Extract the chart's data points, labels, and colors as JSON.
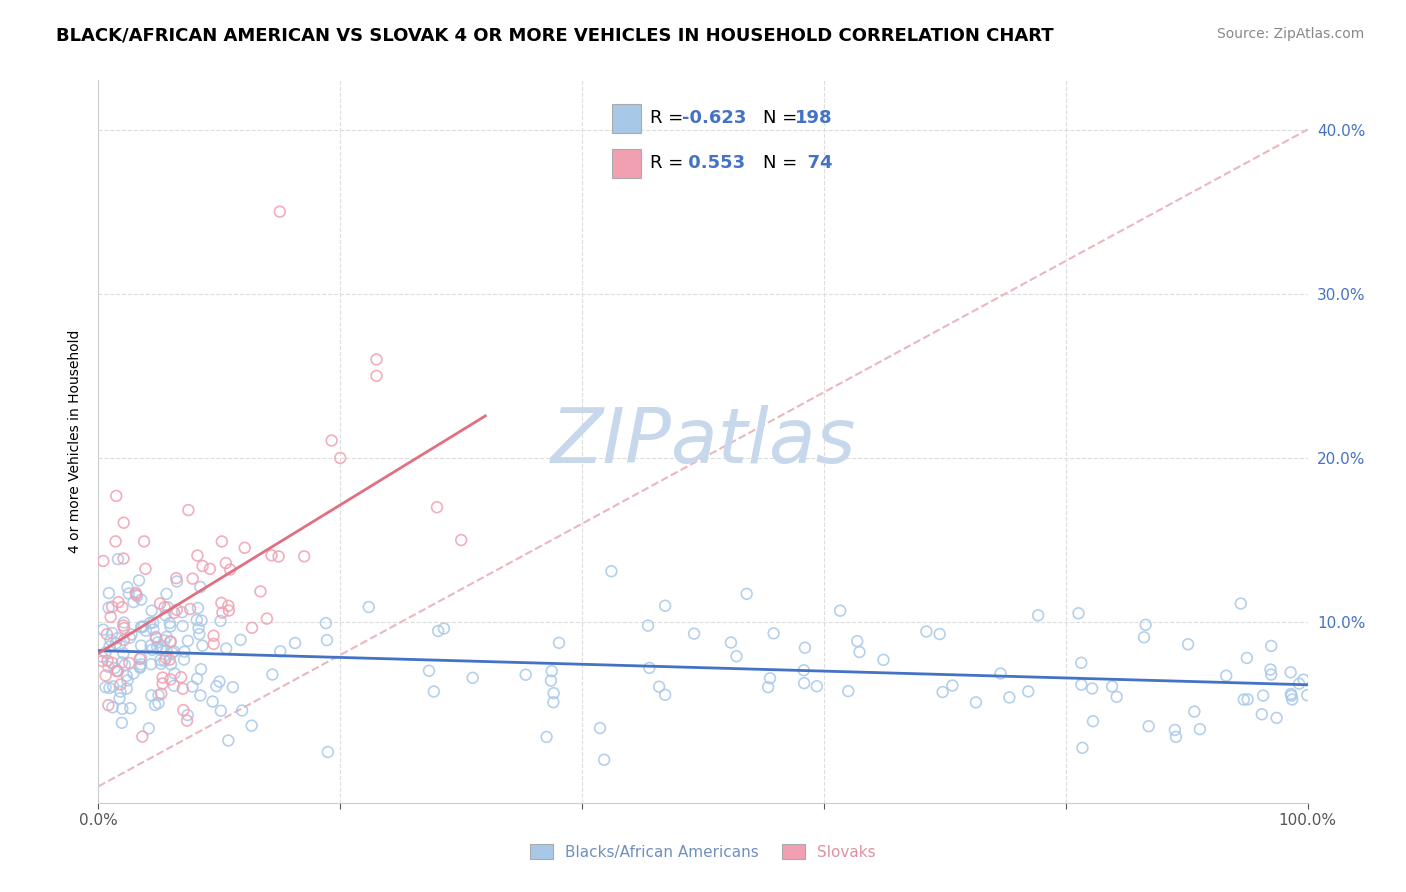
{
  "title": "BLACK/AFRICAN AMERICAN VS SLOVAK 4 OR MORE VEHICLES IN HOUSEHOLD CORRELATION CHART",
  "source": "Source: ZipAtlas.com",
  "ylabel": "4 or more Vehicles in Household",
  "xlabel_blue": "Blacks/African Americans",
  "xlabel_pink": "Slovaks",
  "xlim": [
    0,
    1.0
  ],
  "ylim": [
    -0.01,
    0.43
  ],
  "xticks": [
    0.0,
    0.2,
    0.4,
    0.6,
    0.8,
    1.0
  ],
  "xtick_labels": [
    "0.0%",
    "",
    "",
    "",
    "",
    "100.0%"
  ],
  "yticks": [
    0.0,
    0.1,
    0.2,
    0.3,
    0.4
  ],
  "ytick_labels_right": [
    "",
    "10.0%",
    "20.0%",
    "30.0%",
    "40.0%"
  ],
  "R_blue": -0.623,
  "N_blue": 198,
  "R_pink": 0.553,
  "N_pink": 74,
  "blue_color": "#A8C8E8",
  "pink_color": "#F0A0B0",
  "blue_line_color": "#4472C4",
  "pink_line_color": "#E07080",
  "diag_line_color": "#E8B0B8",
  "grid_color": "#DDDDDD",
  "watermark_color": "#C8D8EC",
  "title_fontsize": 13,
  "source_fontsize": 10,
  "legend_R_color": "#4472C4",
  "legend_N_color": "#4472C4"
}
